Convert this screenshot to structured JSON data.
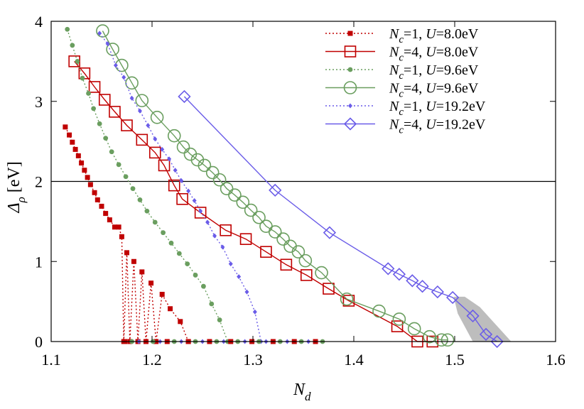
{
  "chart_data": {
    "type": "line",
    "xlabel_main": "N",
    "xlabel_sub": "d",
    "ylabel_main": "Δ",
    "ylabel_sub": "ρ",
    "ylabel_unit": " [eV]",
    "xlim": [
      1.1,
      1.6
    ],
    "ylim": [
      0,
      4
    ],
    "xticks": [
      "1.1",
      "1.2",
      "1.3",
      "1.4",
      "1.5",
      "1.6"
    ],
    "yticks": [
      "0",
      "1",
      "2",
      "3",
      "4"
    ],
    "reference_line_y": 2,
    "series": [
      {
        "legend": [
          "N",
          "c",
          "=1, ",
          "U",
          "=8.0eV"
        ],
        "color": "#c00000",
        "dash": true,
        "marker": "small-square",
        "x": [
          1.114,
          1.118,
          1.121,
          1.124,
          1.127,
          1.13,
          1.133,
          1.136,
          1.139,
          1.143,
          1.146,
          1.15,
          1.154,
          1.158,
          1.163,
          1.167,
          1.17,
          1.172,
          1.175,
          1.178,
          1.182,
          1.186,
          1.19,
          1.194,
          1.199,
          1.204,
          1.21,
          1.218,
          1.228,
          1.236
        ],
        "y": [
          2.68,
          2.58,
          2.49,
          2.4,
          2.32,
          2.23,
          2.14,
          2.05,
          1.96,
          1.86,
          1.77,
          1.69,
          1.6,
          1.52,
          1.43,
          1.43,
          1.31,
          0.0,
          1.11,
          0.0,
          1.0,
          0.0,
          0.87,
          0.0,
          0.73,
          0.0,
          0.59,
          0.41,
          0.25,
          0.0
        ]
      },
      {
        "legend": [
          "N",
          "c",
          "=4, ",
          "U",
          "=8.0eV"
        ],
        "color": "#c00000",
        "dash": false,
        "marker": "open-square",
        "x": [
          1.123,
          1.133,
          1.143,
          1.153,
          1.163,
          1.175,
          1.19,
          1.203,
          1.212,
          1.222,
          1.23,
          1.248,
          1.273,
          1.293,
          1.313,
          1.333,
          1.353,
          1.375,
          1.395,
          1.443,
          1.463,
          1.478
        ],
        "y": [
          3.5,
          3.35,
          3.18,
          3.02,
          2.87,
          2.7,
          2.52,
          2.36,
          2.2,
          1.95,
          1.78,
          1.61,
          1.39,
          1.28,
          1.12,
          0.96,
          0.83,
          0.66,
          0.51,
          0.19,
          0.0,
          0.0
        ]
      },
      {
        "legend": [
          "N",
          "c",
          "=1, ",
          "U",
          "=9.6eV"
        ],
        "color": "#6a9e5f",
        "dash": true,
        "marker": "dot",
        "x": [
          1.116,
          1.121,
          1.126,
          1.131,
          1.137,
          1.142,
          1.148,
          1.154,
          1.16,
          1.167,
          1.174,
          1.181,
          1.188,
          1.195,
          1.203,
          1.211,
          1.219,
          1.227,
          1.235,
          1.243,
          1.251,
          1.259,
          1.267,
          1.275
        ],
        "y": [
          3.9,
          3.7,
          3.5,
          3.29,
          3.1,
          2.91,
          2.72,
          2.54,
          2.37,
          2.21,
          2.06,
          1.91,
          1.77,
          1.63,
          1.49,
          1.36,
          1.23,
          1.1,
          0.97,
          0.83,
          0.69,
          0.47,
          0.27,
          0.0
        ]
      },
      {
        "legend": [
          "N",
          "c",
          "=4, ",
          "U",
          "=9.6eV"
        ],
        "color": "#6a9e5f",
        "dash": false,
        "marker": "open-circle",
        "x": [
          1.151,
          1.161,
          1.17,
          1.18,
          1.19,
          1.205,
          1.222,
          1.231,
          1.238,
          1.245,
          1.252,
          1.26,
          1.267,
          1.274,
          1.282,
          1.29,
          1.298,
          1.306,
          1.313,
          1.322,
          1.33,
          1.337,
          1.345,
          1.352,
          1.368,
          1.393,
          1.425,
          1.445,
          1.46,
          1.475,
          1.487,
          1.493
        ],
        "y": [
          3.88,
          3.65,
          3.45,
          3.23,
          3.01,
          2.8,
          2.57,
          2.43,
          2.34,
          2.27,
          2.2,
          2.11,
          2.02,
          1.91,
          1.83,
          1.74,
          1.64,
          1.55,
          1.44,
          1.37,
          1.28,
          1.19,
          1.12,
          1.01,
          0.86,
          0.53,
          0.38,
          0.28,
          0.16,
          0.06,
          0.02,
          0.02
        ]
      },
      {
        "legend": [
          "N",
          "c",
          "=1, ",
          "U",
          "=19.2eV"
        ],
        "color": "#6a5ce8",
        "dash": true,
        "marker": "small-diamond",
        "x": [
          1.148,
          1.156,
          1.164,
          1.172,
          1.18,
          1.188,
          1.196,
          1.203,
          1.21,
          1.217,
          1.223,
          1.229,
          1.236,
          1.242,
          1.248,
          1.255,
          1.262,
          1.27,
          1.278,
          1.286,
          1.294,
          1.302,
          1.308
        ],
        "y": [
          3.85,
          3.72,
          3.45,
          3.3,
          3.04,
          2.88,
          2.7,
          2.53,
          2.4,
          2.28,
          2.14,
          2.01,
          1.88,
          1.76,
          1.63,
          1.49,
          1.32,
          1.18,
          0.97,
          0.81,
          0.62,
          0.37,
          0.0
        ]
      },
      {
        "legend": [
          "N",
          "c",
          "=4, ",
          "U",
          "=19.2eV"
        ],
        "color": "#6a5ce8",
        "dash": false,
        "marker": "open-diamond",
        "x": [
          1.232,
          1.322,
          1.376,
          1.434,
          1.445,
          1.458,
          1.468,
          1.483,
          1.498,
          1.518,
          1.531,
          1.542
        ],
        "y": [
          3.06,
          1.89,
          1.36,
          0.91,
          0.84,
          0.76,
          0.69,
          0.62,
          0.55,
          0.32,
          0.09,
          0.0
        ]
      }
    ],
    "zero_markers": {
      "x": [
        1.173,
        1.18,
        1.187,
        1.194,
        1.201,
        1.208,
        1.215,
        1.222,
        1.229,
        1.236,
        1.243,
        1.25,
        1.257,
        1.264,
        1.271,
        1.278,
        1.285,
        1.292,
        1.299,
        1.306,
        1.313,
        1.32,
        1.327,
        1.334,
        1.341,
        1.348,
        1.355,
        1.362,
        1.369
      ]
    },
    "shaded_region": {
      "color": "#bdbdbd",
      "polygon": [
        [
          1.499,
          0.56
        ],
        [
          1.51,
          0.56
        ],
        [
          1.525,
          0.43
        ],
        [
          1.538,
          0.25
        ],
        [
          1.556,
          0.0
        ],
        [
          1.518,
          0.0
        ],
        [
          1.503,
          0.35
        ]
      ]
    }
  }
}
